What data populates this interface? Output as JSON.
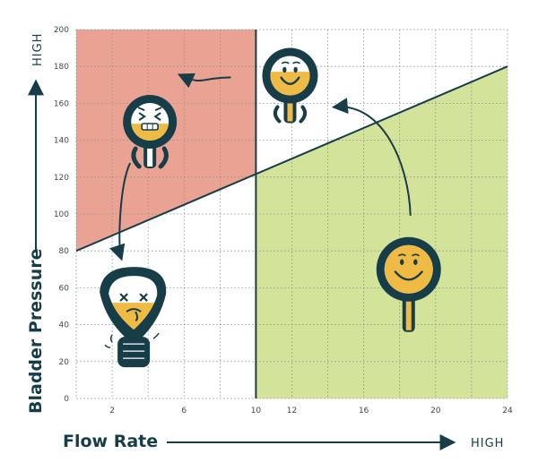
{
  "chart_data": {
    "type": "scatter",
    "title": "",
    "xlabel": "Flow Rate",
    "ylabel": "Bladder Pressure",
    "x_axis_end_label": "HIGH",
    "y_axis_end_label": "HIGH",
    "xlim": [
      0,
      24
    ],
    "ylim": [
      0,
      200
    ],
    "x_ticks": [
      2,
      6,
      10,
      12,
      16,
      20,
      24
    ],
    "y_ticks": [
      0,
      20,
      40,
      60,
      80,
      100,
      120,
      140,
      160,
      180,
      200
    ],
    "grid": true,
    "flow_threshold": 10,
    "boundary_line": [
      [
        0,
        80
      ],
      [
        24,
        180
      ]
    ],
    "regions": [
      {
        "id": "high-pressure-low-flow",
        "color": "#eaa393"
      },
      {
        "id": "low-pressure-high-flow",
        "color": "#d4e39a"
      }
    ],
    "points": [
      {
        "id": "happy-strong",
        "x": 18.5,
        "y": 70,
        "mood": "happy",
        "fill_level": 0.9
      },
      {
        "id": "content",
        "x": 11.9,
        "y": 175,
        "mood": "content",
        "fill_level": 0.6
      },
      {
        "id": "straining",
        "x": 4.1,
        "y": 150,
        "mood": "straining",
        "fill_level": 0.45
      },
      {
        "id": "dead",
        "x": 3.2,
        "y": 48,
        "mood": "dead",
        "fill_level": 0.5
      }
    ],
    "transitions": [
      {
        "from": "happy-strong",
        "to": "content"
      },
      {
        "from": "content",
        "to": "straining"
      },
      {
        "from": "straining",
        "to": "dead"
      }
    ],
    "colors": {
      "ink": "#163d48",
      "fill": "#f0bb45",
      "grid": "#8a9599"
    }
  }
}
